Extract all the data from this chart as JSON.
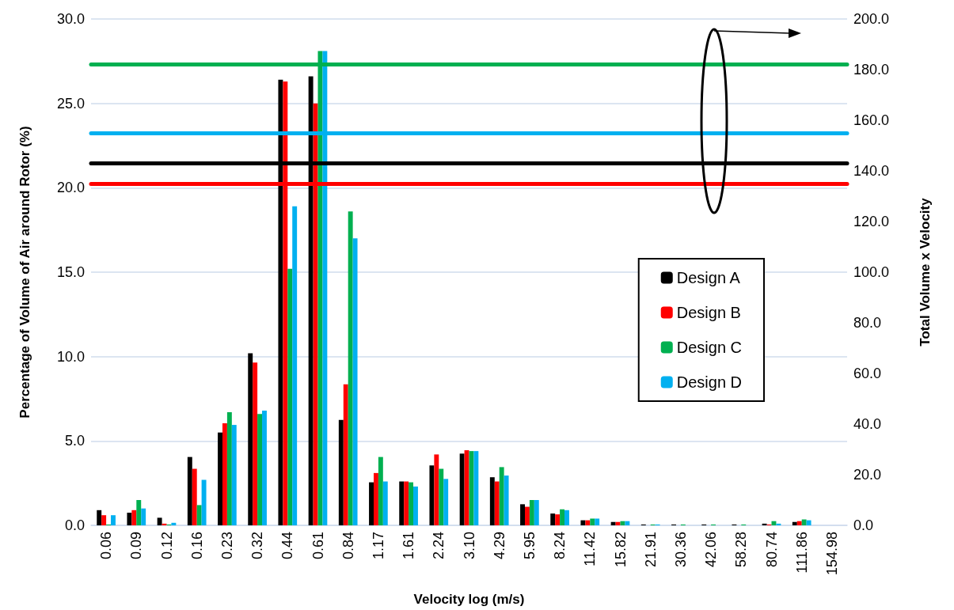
{
  "chart_data": {
    "type": "bar",
    "xlabel": "Velocity log (m/s)",
    "ylabel": "Percentage of Volume of Air around Rotor (%)",
    "y2label": "Total Volume x Velocity",
    "categories": [
      "0.06",
      "0.09",
      "0.12",
      "0.16",
      "0.23",
      "0.32",
      "0.44",
      "0.61",
      "0.84",
      "1.17",
      "1.61",
      "2.24",
      "3.10",
      "4.29",
      "5.95",
      "8.24",
      "11.42",
      "15.82",
      "21.91",
      "30.36",
      "42.06",
      "58.28",
      "80.74",
      "111.86",
      "154.98"
    ],
    "series": [
      {
        "name": "Design A",
        "color": "#000000",
        "values": [
          0.9,
          0.75,
          0.45,
          4.05,
          5.5,
          10.2,
          26.4,
          26.6,
          6.25,
          2.55,
          2.6,
          3.55,
          4.25,
          2.85,
          1.25,
          0.7,
          0.3,
          0.2,
          0.05,
          0.05,
          0.05,
          0.05,
          0.1,
          0.2,
          0
        ]
      },
      {
        "name": "Design B",
        "color": "#ff0000",
        "values": [
          0.6,
          0.9,
          0.1,
          3.35,
          6.05,
          9.65,
          26.3,
          25.0,
          8.35,
          3.1,
          2.6,
          4.2,
          4.45,
          2.6,
          1.1,
          0.65,
          0.3,
          0.2,
          null,
          0,
          0,
          0,
          0.05,
          0.25,
          0
        ]
      },
      {
        "name": "Design C",
        "color": "#00b050",
        "values": [
          0.05,
          1.5,
          0.05,
          1.2,
          6.7,
          6.6,
          15.2,
          28.1,
          18.6,
          4.05,
          2.55,
          3.35,
          4.4,
          3.45,
          1.5,
          0.95,
          0.4,
          0.25,
          0.05,
          0.05,
          0.05,
          0.05,
          0.25,
          0.35,
          0
        ]
      },
      {
        "name": "Design D",
        "color": "#00b0f0",
        "values": [
          0.6,
          1.0,
          0.15,
          2.7,
          5.95,
          6.8,
          18.9,
          28.1,
          17.0,
          2.6,
          2.3,
          2.75,
          4.4,
          2.95,
          1.5,
          0.9,
          0.4,
          0.25,
          0.05,
          0,
          0,
          0,
          0.1,
          0.3,
          0
        ]
      }
    ],
    "ylim": [
      0,
      30
    ],
    "yticks": [
      {
        "value": 0,
        "label": "0.0"
      },
      {
        "value": 5,
        "label": "5.0"
      },
      {
        "value": 10,
        "label": "10.0"
      },
      {
        "value": 15,
        "label": "15.0"
      },
      {
        "value": 20,
        "label": "20.0"
      },
      {
        "value": 25,
        "label": "25.0"
      },
      {
        "value": 30,
        "label": "30.0"
      }
    ],
    "y2lim": [
      0,
      200
    ],
    "y2ticks": [
      {
        "value": 0,
        "label": "0.0"
      },
      {
        "value": 20,
        "label": "20.0"
      },
      {
        "value": 40,
        "label": "40.0"
      },
      {
        "value": 60,
        "label": "60.0"
      },
      {
        "value": 80,
        "label": "80.0"
      },
      {
        "value": 100,
        "label": "100.0"
      },
      {
        "value": 120,
        "label": "120.0"
      },
      {
        "value": 140,
        "label": "140.0"
      },
      {
        "value": 160,
        "label": "160.0"
      },
      {
        "value": 180,
        "label": "180.0"
      },
      {
        "value": 200,
        "label": "200.0"
      }
    ],
    "ref_lines": [
      {
        "axis": "y2",
        "value": 182,
        "color": "#00b050"
      },
      {
        "axis": "y2",
        "value": 155,
        "color": "#00b0f0"
      },
      {
        "axis": "y2",
        "value": 143,
        "color": "#000000"
      },
      {
        "axis": "y2",
        "value": 135,
        "color": "#ff0000"
      }
    ],
    "grid": "y",
    "legend": "right"
  }
}
